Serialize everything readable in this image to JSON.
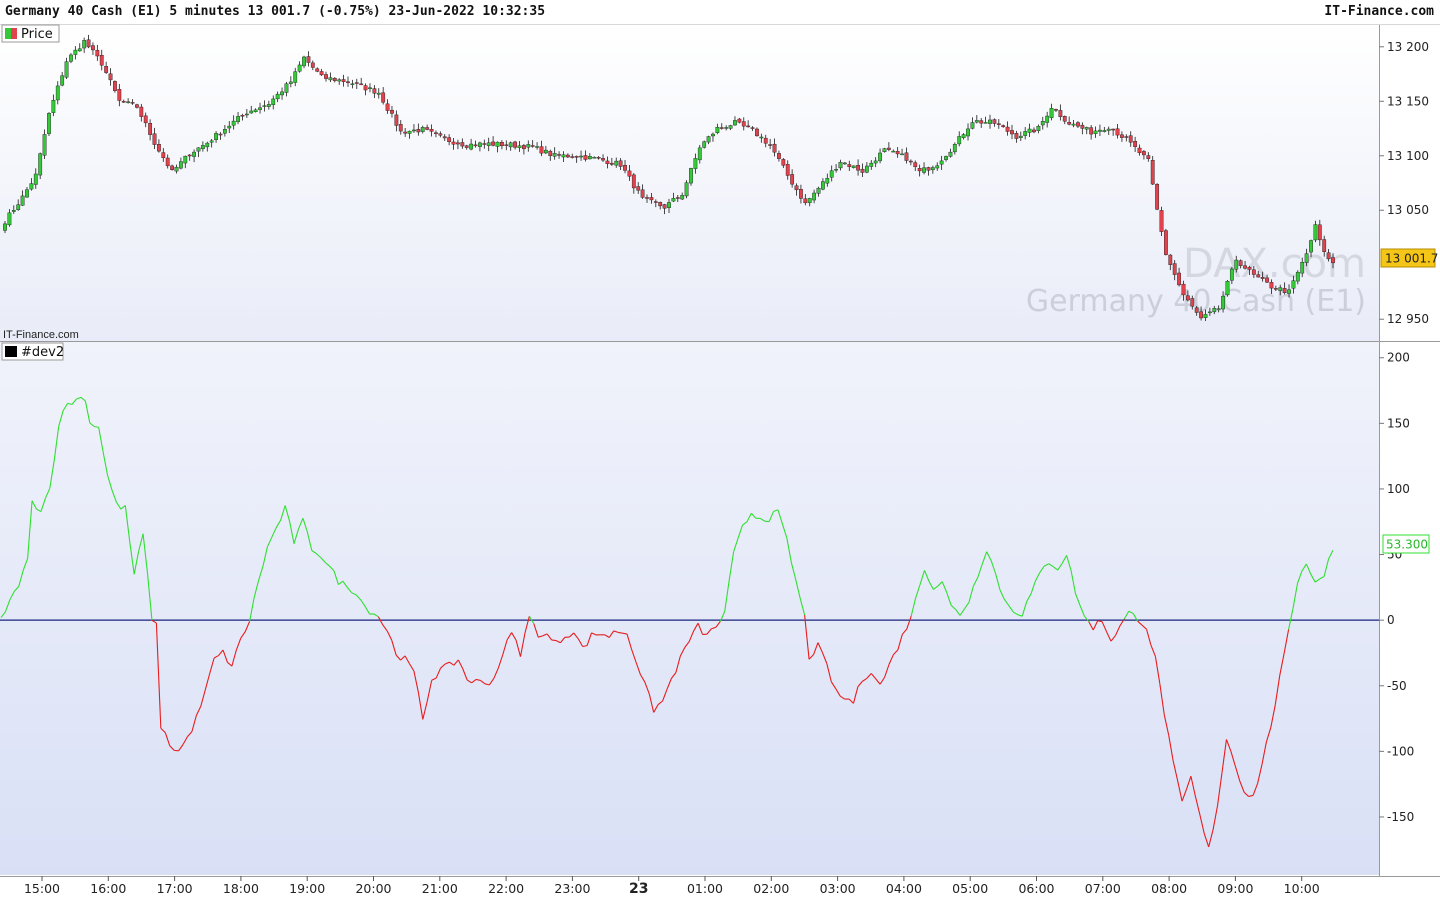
{
  "header": {
    "title": "Germany 40 Cash (E1) 5 minutes 13 001.7 (-0.75%) 23-Jun-2022 10:32:35",
    "brand": "IT-Finance.com"
  },
  "colors": {
    "up": "#35c93a",
    "down": "#e0434e",
    "line_up": "#2fe02f",
    "line_down": "#e81c1c",
    "zero_line": "#1a237e",
    "last_price_bg": "#f5c518"
  },
  "watermark": {
    "line1": "DAX.com",
    "line2": "Germany 40 Cash (E1)"
  },
  "source_label": "IT-Finance.com",
  "chart_data": [
    {
      "type": "candlestick",
      "panel": "Price",
      "legend": "Price",
      "ylim": [
        12930,
        13220
      ],
      "yticks": [
        13200,
        13150,
        13100,
        13050,
        12950
      ],
      "ytick_labels": [
        "13 200",
        "13 150",
        "13 100",
        "13 050",
        "12 950"
      ],
      "last_value": 13001.7,
      "last_label": "13 001.7",
      "anchors": [
        [
          0,
          13040
        ],
        [
          4,
          13062
        ],
        [
          7,
          13082
        ],
        [
          10,
          13138
        ],
        [
          14,
          13187
        ],
        [
          18,
          13205
        ],
        [
          22,
          13185
        ],
        [
          26,
          13150
        ],
        [
          30,
          13145
        ],
        [
          34,
          13112
        ],
        [
          38,
          13085
        ],
        [
          42,
          13102
        ],
        [
          46,
          13112
        ],
        [
          50,
          13125
        ],
        [
          55,
          13140
        ],
        [
          60,
          13148
        ],
        [
          65,
          13168
        ],
        [
          68,
          13190
        ],
        [
          72,
          13172
        ],
        [
          78,
          13168
        ],
        [
          85,
          13158
        ],
        [
          90,
          13122
        ],
        [
          95,
          13124
        ],
        [
          100,
          13115
        ],
        [
          105,
          13110
        ],
        [
          110,
          13111
        ],
        [
          115,
          13110
        ],
        [
          120,
          13108
        ],
        [
          125,
          13100
        ],
        [
          130,
          13100
        ],
        [
          135,
          13097
        ],
        [
          140,
          13092
        ],
        [
          145,
          13060
        ],
        [
          150,
          13053
        ],
        [
          154,
          13065
        ],
        [
          158,
          13108
        ],
        [
          162,
          13125
        ],
        [
          166,
          13130
        ],
        [
          170,
          13123
        ],
        [
          174,
          13110
        ],
        [
          178,
          13082
        ],
        [
          182,
          13056
        ],
        [
          186,
          13075
        ],
        [
          190,
          13095
        ],
        [
          195,
          13086
        ],
        [
          200,
          13105
        ],
        [
          205,
          13098
        ],
        [
          208,
          13085
        ],
        [
          212,
          13093
        ],
        [
          216,
          13110
        ],
        [
          220,
          13132
        ],
        [
          225,
          13130
        ],
        [
          230,
          13118
        ],
        [
          235,
          13125
        ],
        [
          238,
          13145
        ],
        [
          242,
          13130
        ],
        [
          247,
          13122
        ],
        [
          251,
          13127
        ],
        [
          255,
          13115
        ],
        [
          260,
          13095
        ],
        [
          262,
          13050
        ],
        [
          264,
          13010
        ],
        [
          268,
          12972
        ],
        [
          272,
          12950
        ],
        [
          276,
          12960
        ],
        [
          280,
          13005
        ],
        [
          284,
          12990
        ],
        [
          288,
          12980
        ],
        [
          292,
          12975
        ],
        [
          296,
          13010
        ],
        [
          298,
          13035
        ],
        [
          300,
          13010
        ],
        [
          302,
          13003
        ]
      ],
      "count": 303
    },
    {
      "type": "line",
      "panel": "#dev2",
      "legend": "#dev2",
      "ylim": [
        -195,
        212
      ],
      "yticks": [
        200,
        150,
        100,
        50,
        0,
        -50,
        -100,
        -150
      ],
      "ytick_labels": [
        "200",
        "150",
        "100",
        "50",
        "0",
        "-50",
        "-100",
        "-150"
      ],
      "last_value": 53.3,
      "last_label": "53.300",
      "x_ticks": [
        "15:00",
        "16:00",
        "17:00",
        "18:00",
        "19:00",
        "20:00",
        "21:00",
        "22:00",
        "23:00",
        "23",
        "01:00",
        "02:00",
        "03:00",
        "04:00",
        "05:00",
        "06:00",
        "07:00",
        "08:00",
        "09:00",
        "10:00"
      ],
      "bold_tick": "23",
      "anchors": [
        [
          0,
          2
        ],
        [
          3,
          20
        ],
        [
          6,
          45
        ],
        [
          7,
          90
        ],
        [
          9,
          85
        ],
        [
          11,
          100
        ],
        [
          13,
          150
        ],
        [
          15,
          165
        ],
        [
          17,
          168
        ],
        [
          19,
          170
        ],
        [
          20,
          150
        ],
        [
          22,
          148
        ],
        [
          24,
          110
        ],
        [
          26,
          88
        ],
        [
          28,
          85
        ],
        [
          30,
          35
        ],
        [
          32,
          65
        ],
        [
          34,
          2
        ],
        [
          35,
          -5
        ],
        [
          36,
          -80
        ],
        [
          38,
          -95
        ],
        [
          40,
          -100
        ],
        [
          42,
          -90
        ],
        [
          44,
          -75
        ],
        [
          46,
          -55
        ],
        [
          48,
          -30
        ],
        [
          50,
          -25
        ],
        [
          52,
          -35
        ],
        [
          54,
          -15
        ],
        [
          56,
          0
        ],
        [
          58,
          30
        ],
        [
          60,
          55
        ],
        [
          62,
          70
        ],
        [
          64,
          85
        ],
        [
          66,
          60
        ],
        [
          68,
          75
        ],
        [
          70,
          55
        ],
        [
          72,
          50
        ],
        [
          74,
          40
        ],
        [
          76,
          30
        ],
        [
          78,
          25
        ],
        [
          80,
          22
        ],
        [
          82,
          10
        ],
        [
          85,
          3
        ],
        [
          87,
          -8
        ],
        [
          89,
          -25
        ],
        [
          91,
          -30
        ],
        [
          93,
          -40
        ],
        [
          95,
          -75
        ],
        [
          97,
          -45
        ],
        [
          99,
          -38
        ],
        [
          101,
          -35
        ],
        [
          103,
          -30
        ],
        [
          105,
          -45
        ],
        [
          107,
          -47
        ],
        [
          109,
          -48
        ],
        [
          111,
          -45
        ],
        [
          113,
          -25
        ],
        [
          115,
          -10
        ],
        [
          117,
          -25
        ],
        [
          119,
          2
        ],
        [
          121,
          -10
        ],
        [
          123,
          -12
        ],
        [
          125,
          -18
        ],
        [
          127,
          -12
        ],
        [
          129,
          -8
        ],
        [
          131,
          -22
        ],
        [
          133,
          -12
        ],
        [
          135,
          -10
        ],
        [
          137,
          -12
        ],
        [
          139,
          -8
        ],
        [
          141,
          -10
        ],
        [
          143,
          -30
        ],
        [
          145,
          -50
        ],
        [
          147,
          -68
        ],
        [
          149,
          -62
        ],
        [
          151,
          -45
        ],
        [
          153,
          -30
        ],
        [
          155,
          -15
        ],
        [
          157,
          -5
        ],
        [
          159,
          -12
        ],
        [
          161,
          -5
        ],
        [
          163,
          5
        ],
        [
          165,
          50
        ],
        [
          167,
          70
        ],
        [
          169,
          82
        ],
        [
          171,
          78
        ],
        [
          173,
          78
        ],
        [
          175,
          82
        ],
        [
          177,
          60
        ],
        [
          179,
          30
        ],
        [
          181,
          2
        ],
        [
          182,
          -28
        ],
        [
          184,
          -20
        ],
        [
          186,
          -35
        ],
        [
          188,
          -55
        ],
        [
          190,
          -60
        ],
        [
          192,
          -62
        ],
        [
          194,
          -45
        ],
        [
          196,
          -38
        ],
        [
          198,
          -50
        ],
        [
          200,
          -35
        ],
        [
          202,
          -20
        ],
        [
          204,
          -5
        ],
        [
          206,
          15
        ],
        [
          208,
          40
        ],
        [
          210,
          25
        ],
        [
          212,
          30
        ],
        [
          214,
          10
        ],
        [
          216,
          5
        ],
        [
          218,
          15
        ],
        [
          220,
          35
        ],
        [
          222,
          55
        ],
        [
          224,
          35
        ],
        [
          226,
          15
        ],
        [
          228,
          8
        ],
        [
          230,
          5
        ],
        [
          232,
          20
        ],
        [
          234,
          35
        ],
        [
          236,
          45
        ],
        [
          238,
          40
        ],
        [
          240,
          50
        ],
        [
          242,
          22
        ],
        [
          244,
          2
        ],
        [
          246,
          -5
        ],
        [
          248,
          0
        ],
        [
          250,
          -15
        ],
        [
          252,
          -5
        ],
        [
          254,
          5
        ],
        [
          256,
          2
        ],
        [
          258,
          -5
        ],
        [
          260,
          -30
        ],
        [
          262,
          -70
        ],
        [
          264,
          -110
        ],
        [
          266,
          -140
        ],
        [
          268,
          -120
        ],
        [
          270,
          -150
        ],
        [
          272,
          -175
        ],
        [
          274,
          -140
        ],
        [
          276,
          -90
        ],
        [
          278,
          -110
        ],
        [
          280,
          -130
        ],
        [
          282,
          -135
        ],
        [
          284,
          -110
        ],
        [
          286,
          -80
        ],
        [
          288,
          -45
        ],
        [
          290,
          -10
        ],
        [
          292,
          30
        ],
        [
          294,
          45
        ],
        [
          296,
          28
        ],
        [
          298,
          35
        ],
        [
          299,
          48
        ],
        [
          300,
          53.3
        ]
      ],
      "count": 301
    }
  ]
}
